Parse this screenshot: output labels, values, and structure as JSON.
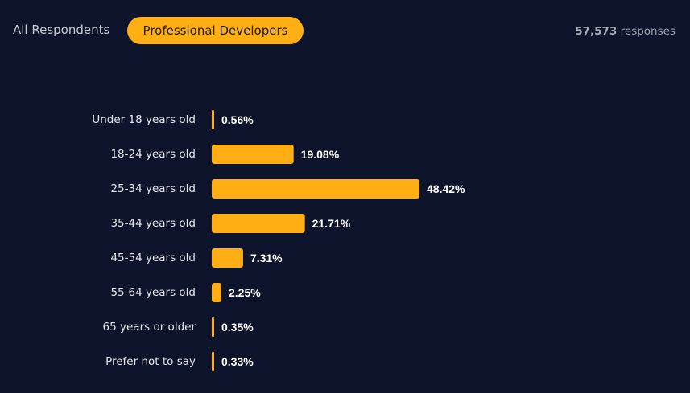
{
  "filters": {
    "all_label": "All Respondents",
    "pro_label": "Professional Developers"
  },
  "responses": {
    "count": "57,573",
    "suffix": "responses"
  },
  "colors": {
    "background": "#0d142c",
    "bar": "#ffae13"
  },
  "chart_data": {
    "type": "bar",
    "orientation": "horizontal",
    "categories": [
      "Under 18 years old",
      "18-24 years old",
      "25-34 years old",
      "35-44 years old",
      "45-54 years old",
      "55-64 years old",
      "65 years or older",
      "Prefer not to say"
    ],
    "values": [
      0.56,
      19.08,
      48.42,
      21.71,
      7.31,
      2.25,
      0.35,
      0.33
    ],
    "value_labels": [
      "0.56%",
      "19.08%",
      "48.42%",
      "21.71%",
      "7.31%",
      "2.25%",
      "0.35%",
      "0.33%"
    ],
    "unit": "%",
    "xlim": [
      0,
      48.42
    ],
    "grid": false
  }
}
